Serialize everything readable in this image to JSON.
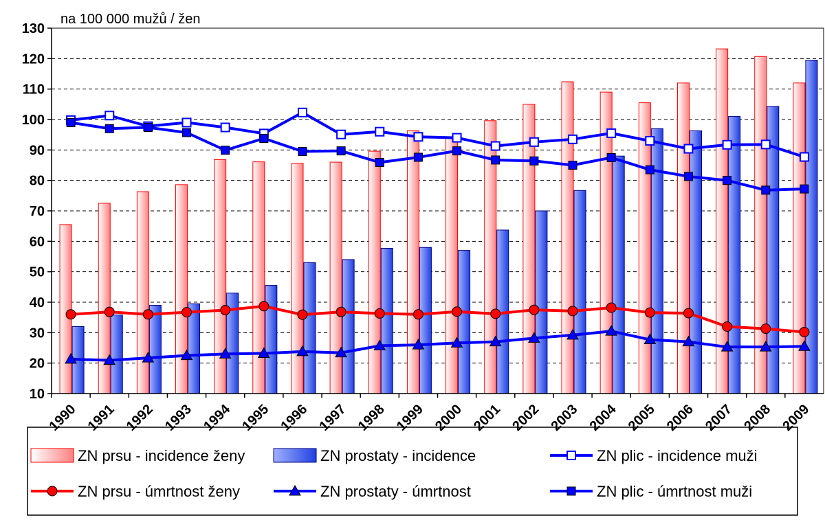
{
  "chart_data": {
    "type": "bar",
    "y_label": "na 100 000 mužů / žen",
    "categories": [
      "1990",
      "1991",
      "1992",
      "1993",
      "1994",
      "1995",
      "1996",
      "1997",
      "1998",
      "1999",
      "2000",
      "2001",
      "2002",
      "2003",
      "2004",
      "2005",
      "2006",
      "2007",
      "2008",
      "2009"
    ],
    "ylim": [
      10,
      130
    ],
    "yticks": [
      10,
      20,
      30,
      40,
      50,
      60,
      70,
      80,
      90,
      100,
      110,
      120,
      130
    ],
    "grid": true,
    "series": [
      {
        "name": "ZN prsu - incidence ženy",
        "kind": "bar",
        "color": "#ff0000",
        "values": [
          65.5,
          72.5,
          76.3,
          78.6,
          86.8,
          86.1,
          85.6,
          86,
          89.6,
          96.3,
          94,
          99.6,
          105,
          112.4,
          109,
          105.5,
          112,
          123.2,
          120.7,
          112
        ]
      },
      {
        "name": "ZN prostaty - incidence",
        "kind": "bar",
        "color": "#0000ff",
        "values": [
          32,
          35.8,
          39,
          39.5,
          43,
          45.5,
          53,
          54,
          57.7,
          58,
          57,
          63.7,
          70,
          76.7,
          88,
          97,
          96.3,
          101,
          104.3,
          119.5
        ]
      },
      {
        "name": "ZN plic - incidence muži",
        "kind": "line",
        "marker": "square-open",
        "color": "#0000ff",
        "values": [
          99.8,
          101.3,
          97.8,
          99,
          97.4,
          95.4,
          102.3,
          95.1,
          96,
          94.3,
          94,
          91.3,
          92.6,
          93.5,
          95.5,
          93,
          90.4,
          91.7,
          91.8,
          87.7
        ]
      },
      {
        "name": "ZN prsu - úmrtnost ženy",
        "kind": "line",
        "marker": "circle",
        "color": "#ff0000",
        "values": [
          36,
          36.8,
          36,
          36.7,
          37.4,
          38.7,
          35.9,
          36.8,
          36.3,
          36,
          36.9,
          36.2,
          37.5,
          37.1,
          38.2,
          36.6,
          36.4,
          32,
          31.3,
          30.2
        ]
      },
      {
        "name": "ZN prostaty - úmrtnost",
        "kind": "line",
        "marker": "triangle",
        "color": "#0000ff",
        "values": [
          21.3,
          20.9,
          21.7,
          22.5,
          23,
          23.2,
          23.8,
          23.4,
          25.7,
          26,
          26.6,
          27,
          28.2,
          29.2,
          30.5,
          27.7,
          27,
          25.3,
          25.3,
          25.5
        ]
      },
      {
        "name": "ZN plic - úmrtnost muži",
        "kind": "line",
        "marker": "square",
        "color": "#0000ff",
        "values": [
          99,
          97,
          97.4,
          95.7,
          89.9,
          93.8,
          89.5,
          89.7,
          85.9,
          87.6,
          89.7,
          86.7,
          86.4,
          85,
          87.5,
          83.5,
          81.3,
          80,
          76.8,
          77.2
        ]
      }
    ],
    "legend": "bottom"
  }
}
